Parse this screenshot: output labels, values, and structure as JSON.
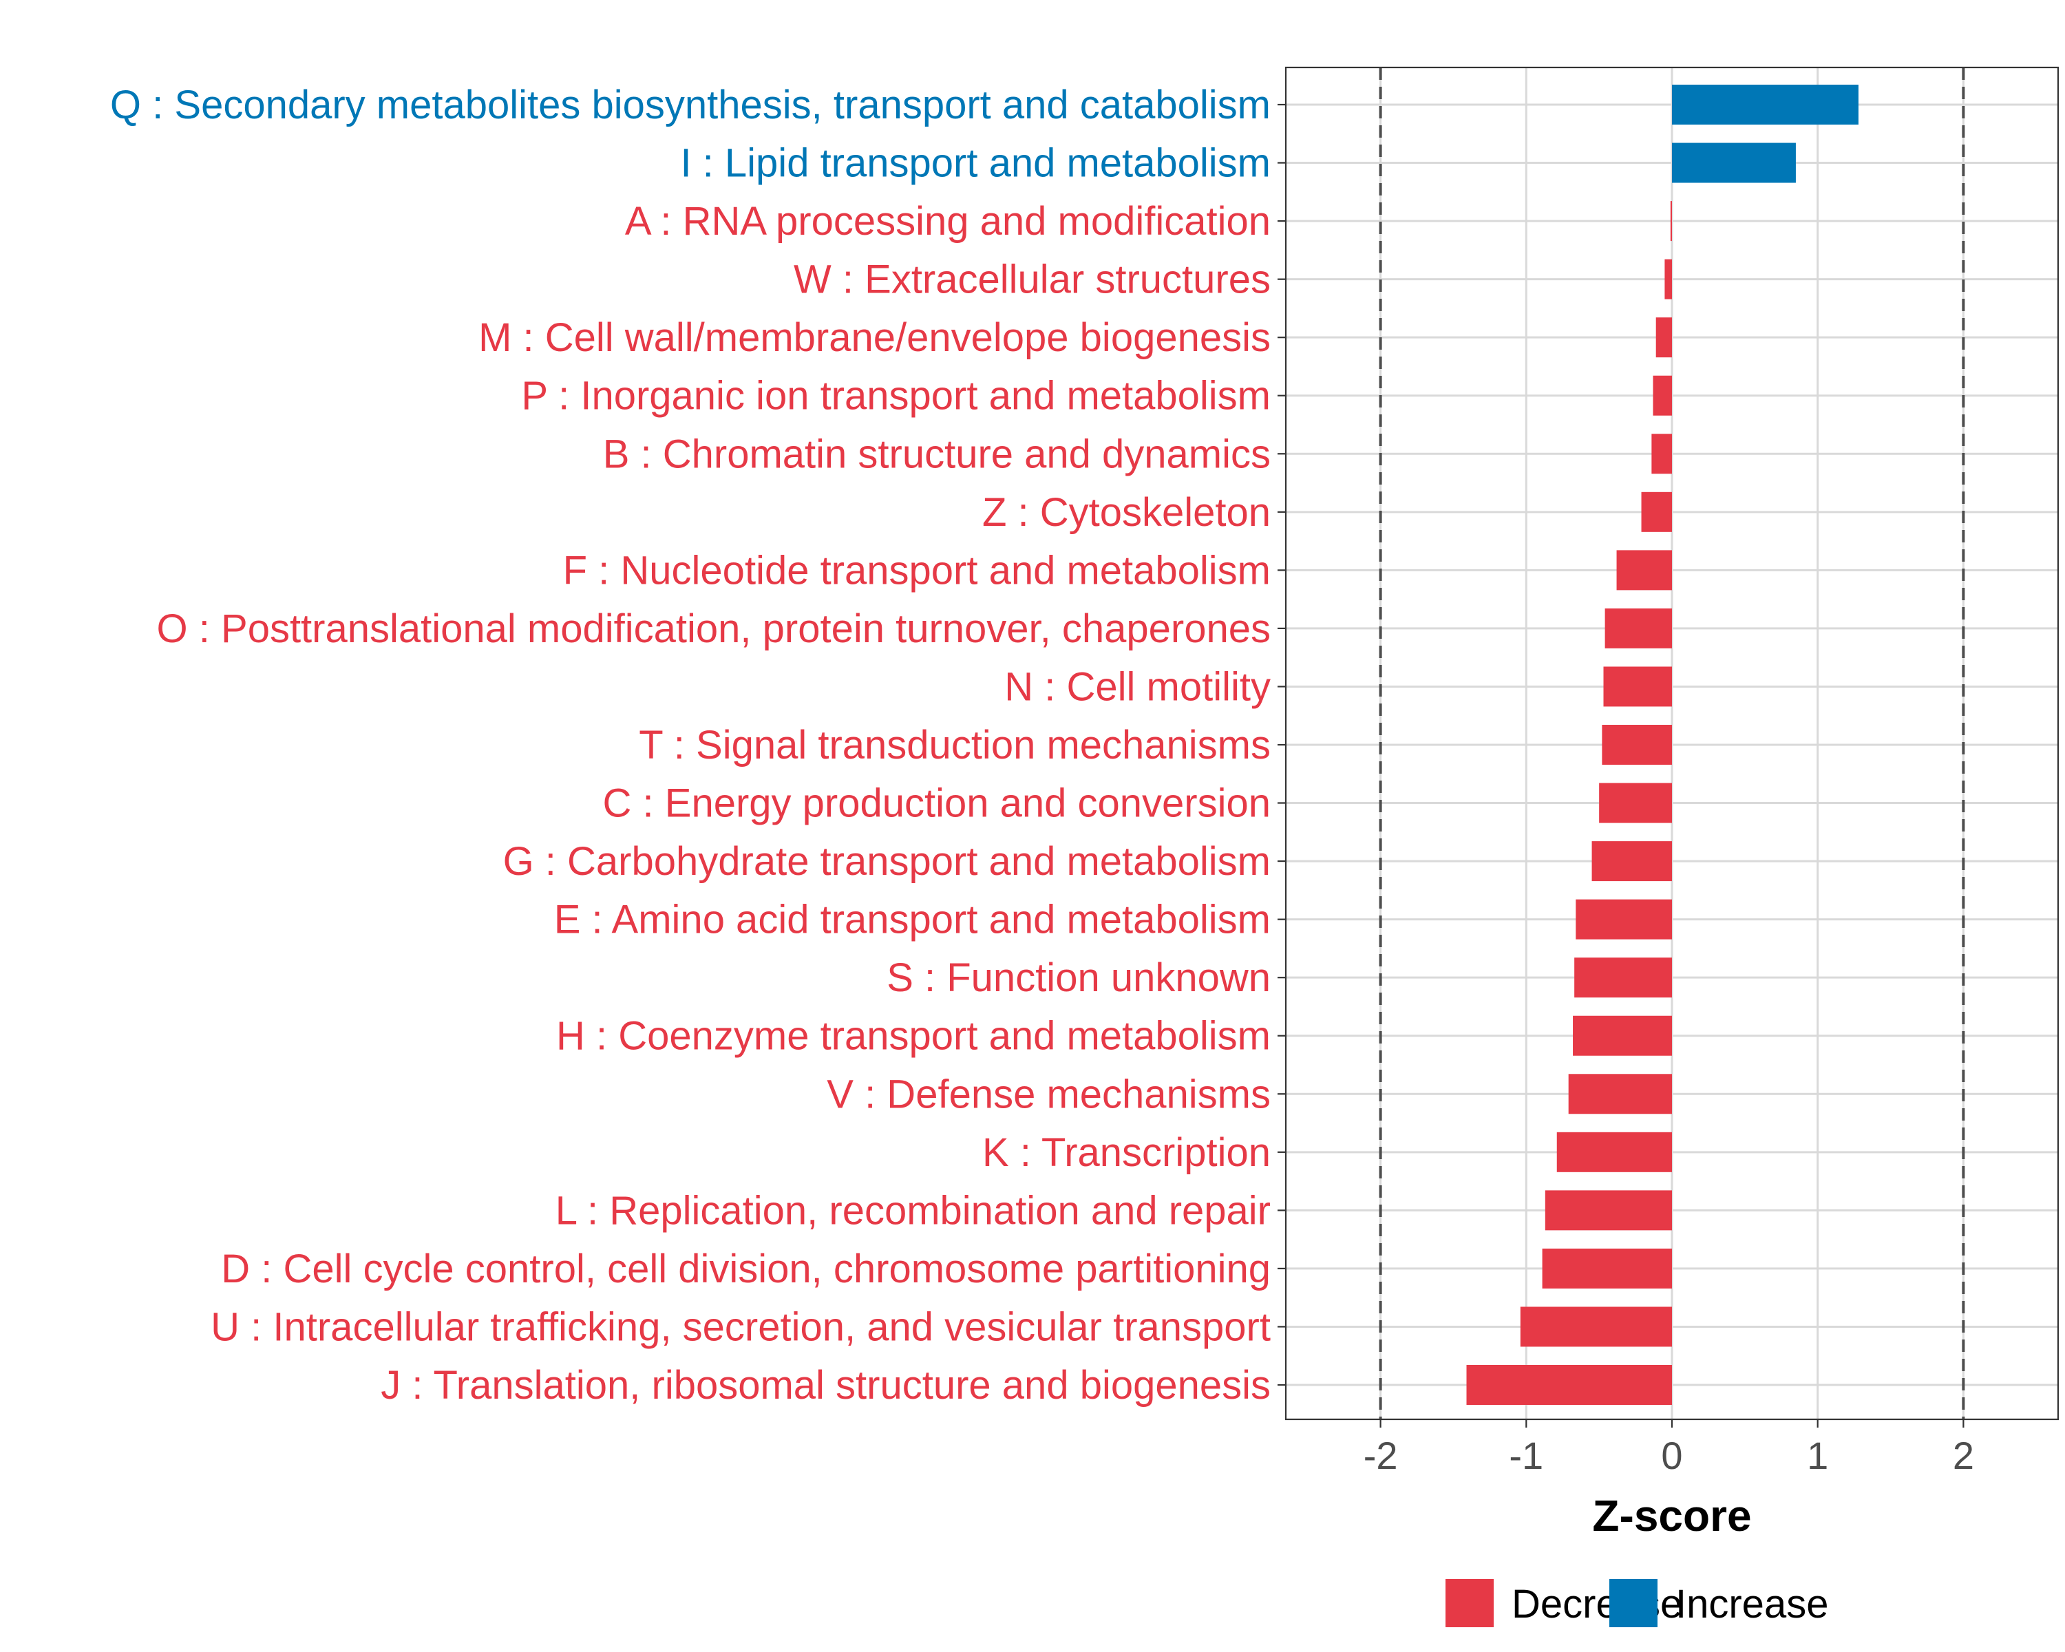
{
  "chart_data": {
    "type": "bar",
    "orientation": "horizontal",
    "xlabel": "Z-score",
    "xlim": [
      -2.65,
      2.65
    ],
    "xticks": [
      -2,
      -1,
      0,
      1,
      2
    ],
    "xtick_labels": [
      "-2",
      "-1",
      "0",
      "1",
      "2"
    ],
    "reference_lines": [
      -2,
      2
    ],
    "grid": true,
    "legend": {
      "placement": "bottom",
      "entries": [
        {
          "label": "Decrease",
          "color": "#e63946"
        },
        {
          "label": "Increase",
          "color": "#0077b6"
        }
      ]
    },
    "colors": {
      "Decrease": "#e63946",
      "Increase": "#0077b6"
    },
    "categories": [
      {
        "label": "Q : Secondary metabolites biosynthesis, transport and catabolism",
        "value": 1.28,
        "group": "Increase"
      },
      {
        "label": "I : Lipid transport and metabolism",
        "value": 0.85,
        "group": "Increase"
      },
      {
        "label": "A : RNA processing and modification",
        "value": -0.01,
        "group": "Decrease"
      },
      {
        "label": "W : Extracellular structures",
        "value": -0.05,
        "group": "Decrease"
      },
      {
        "label": "M : Cell wall/membrane/envelope biogenesis",
        "value": -0.11,
        "group": "Decrease"
      },
      {
        "label": "P : Inorganic ion transport and metabolism",
        "value": -0.13,
        "group": "Decrease"
      },
      {
        "label": "B : Chromatin structure and dynamics",
        "value": -0.14,
        "group": "Decrease"
      },
      {
        "label": "Z : Cytoskeleton",
        "value": -0.21,
        "group": "Decrease"
      },
      {
        "label": "F : Nucleotide transport and metabolism",
        "value": -0.38,
        "group": "Decrease"
      },
      {
        "label": "O : Posttranslational modification, protein turnover, chaperones",
        "value": -0.46,
        "group": "Decrease"
      },
      {
        "label": "N : Cell motility",
        "value": -0.47,
        "group": "Decrease"
      },
      {
        "label": "T : Signal transduction mechanisms",
        "value": -0.48,
        "group": "Decrease"
      },
      {
        "label": "C : Energy production and conversion",
        "value": -0.5,
        "group": "Decrease"
      },
      {
        "label": "G : Carbohydrate transport and metabolism",
        "value": -0.55,
        "group": "Decrease"
      },
      {
        "label": "E : Amino acid transport and metabolism",
        "value": -0.66,
        "group": "Decrease"
      },
      {
        "label": "S : Function unknown",
        "value": -0.67,
        "group": "Decrease"
      },
      {
        "label": "H : Coenzyme transport and metabolism",
        "value": -0.68,
        "group": "Decrease"
      },
      {
        "label": "V : Defense mechanisms",
        "value": -0.71,
        "group": "Decrease"
      },
      {
        "label": "K : Transcription",
        "value": -0.79,
        "group": "Decrease"
      },
      {
        "label": "L : Replication, recombination and repair",
        "value": -0.87,
        "group": "Decrease"
      },
      {
        "label": "D : Cell cycle control, cell division, chromosome partitioning",
        "value": -0.89,
        "group": "Decrease"
      },
      {
        "label": "U : Intracellular trafficking, secretion, and vesicular transport",
        "value": -1.04,
        "group": "Decrease"
      },
      {
        "label": "J : Translation, ribosomal structure and biogenesis",
        "value": -1.41,
        "group": "Decrease"
      }
    ]
  }
}
